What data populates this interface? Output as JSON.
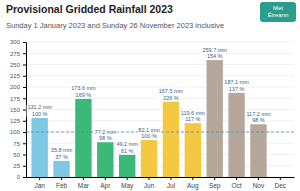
{
  "chart_data": {
    "type": "bar",
    "title": "Provisional Gridded Rainfall 2023",
    "subtitle": "Sunday 1 January 2023 and Sunday 26 November 2023 inclusive",
    "categories": [
      "Jan",
      "Feb",
      "Mar",
      "Apr",
      "May",
      "Jun",
      "Jul",
      "Aug",
      "Sep",
      "Oct",
      "Nov",
      "Dec"
    ],
    "values": [
      131.2,
      35.8,
      173.6,
      77.2,
      49.2,
      82.1,
      167.5,
      119.6,
      259.7,
      187.1,
      117.2,
      null
    ],
    "value_labels": [
      "131.2 mm",
      "35.8 mm",
      "173.6 mm",
      "77.2 mm",
      "49.2 mm",
      "82.1 mm",
      "167.5 mm",
      "119.6 mm",
      "259.7 mm",
      "187.1 mm",
      "117.2 mm",
      null
    ],
    "percent_of_average": [
      100,
      37,
      169,
      98,
      61,
      100,
      226,
      117,
      154,
      137,
      98,
      null
    ],
    "percent_labels": [
      "100 %",
      "37 %",
      "169 %",
      "98 %",
      "61 %",
      "100 %",
      "226 %",
      "117 %",
      "154 %",
      "137 %",
      "98 %",
      null
    ],
    "colors": [
      "#7ec8e3",
      "#7ec8e3",
      "#3cb878",
      "#3cb878",
      "#3cb878",
      "#f5c842",
      "#f5c842",
      "#f5c842",
      "#b5a89a",
      "#b5a89a",
      "#b5a89a",
      "#b5a89a"
    ],
    "reference_line": 100,
    "ylim": [
      0,
      300
    ],
    "yticks": [
      0,
      25,
      50,
      75,
      100,
      125,
      150,
      175,
      200,
      225,
      250,
      275,
      300
    ],
    "grid": true,
    "data_labels": true,
    "logo_text": [
      "Met",
      "Éireann"
    ]
  }
}
